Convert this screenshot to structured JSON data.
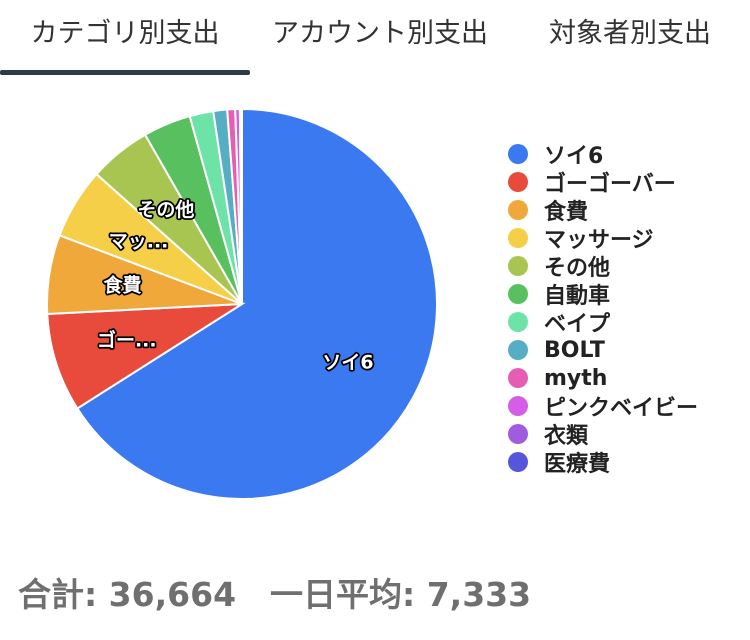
{
  "tabs": [
    {
      "label": "カテゴリ別支出",
      "active": true
    },
    {
      "label": "アカウント別支出",
      "active": false
    },
    {
      "label": "対象者別支出",
      "active": false
    }
  ],
  "chart_data": {
    "type": "pie",
    "categories": [
      "ソイ6",
      "ゴーゴーバー",
      "食費",
      "マッサージ",
      "その他",
      "自動車",
      "ベイプ",
      "BOLT",
      "myth",
      "ピンクベイビー",
      "衣類",
      "医療費"
    ],
    "values": [
      24200,
      3000,
      2400,
      2150,
      1880,
      1450,
      720,
      420,
      240,
      140,
      40,
      24
    ],
    "colors": [
      "#3b79f0",
      "#e84b3c",
      "#f0a83b",
      "#f5cf47",
      "#a8c451",
      "#58c05f",
      "#6ee3a8",
      "#55aec3",
      "#e65eb3",
      "#d45ee6",
      "#a05cde",
      "#5656dc"
    ],
    "slice_labels": [
      "ソイ6",
      "ゴー...",
      "食費",
      "マッ...",
      "その他",
      "",
      "",
      "",
      "",
      "",
      "",
      ""
    ],
    "legend_position": "right"
  },
  "summary": {
    "total_label": "合計: 36,664",
    "average_label": "一日平均: 7,333"
  }
}
